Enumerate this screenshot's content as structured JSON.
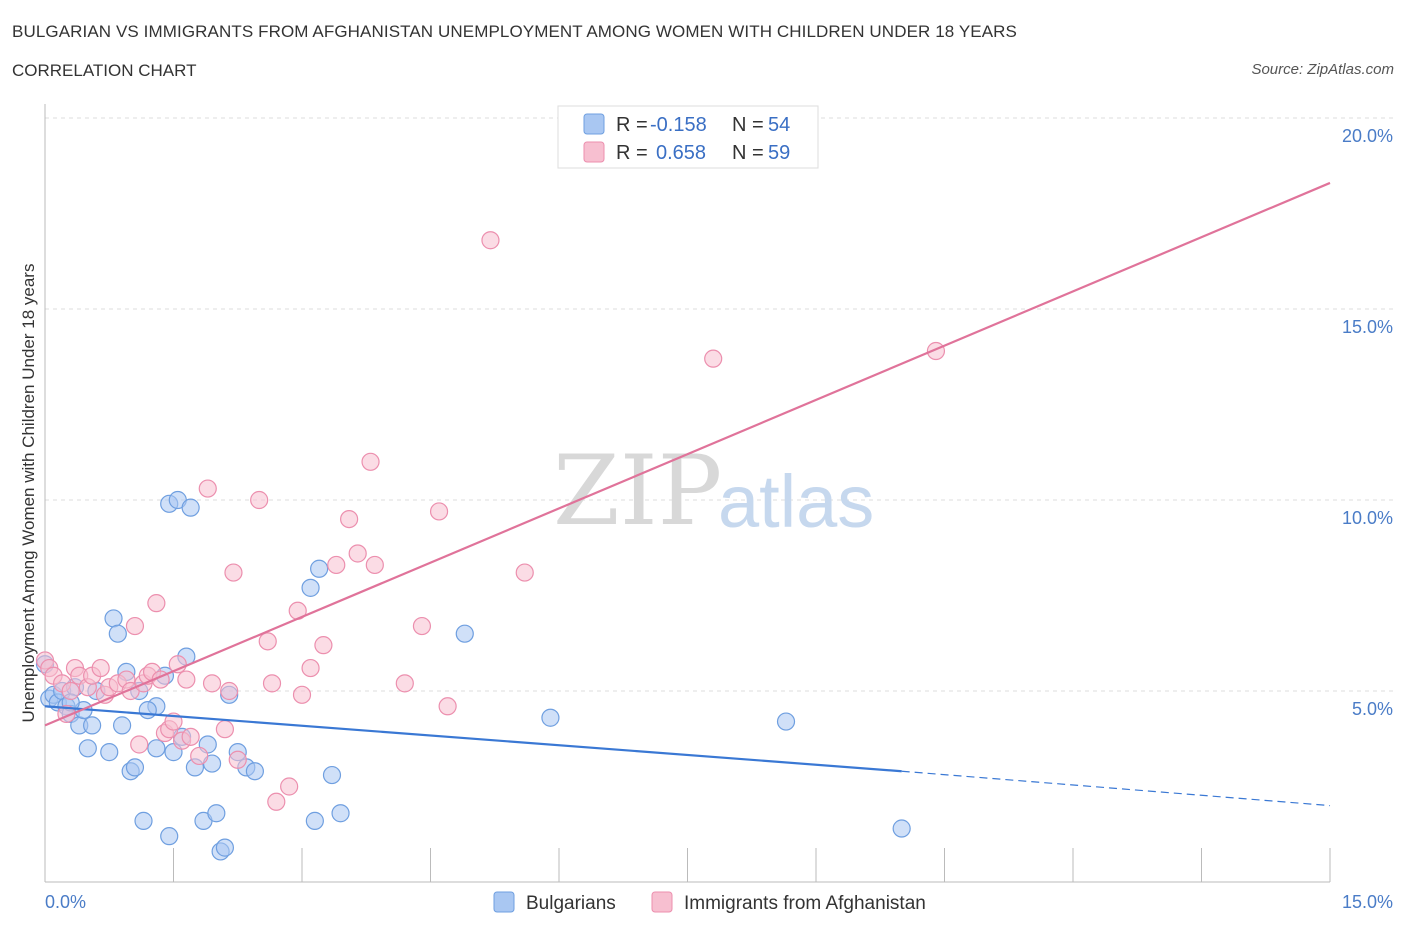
{
  "header": {
    "title": "BULGARIAN VS IMMIGRANTS FROM AFGHANISTAN UNEMPLOYMENT AMONG WOMEN WITH CHILDREN UNDER 18 YEARS",
    "subtitle": "CORRELATION CHART",
    "source": "Source: ZipAtlas.com"
  },
  "watermark": {
    "zip": "ZIP",
    "atlas": "atlas"
  },
  "legend": {
    "rows": [
      {
        "r_label": "R =",
        "r_value": "-0.158",
        "n_label": "N =",
        "n_value": "54",
        "color": "#a9c7f2"
      },
      {
        "r_label": "R =",
        "r_value": "0.658",
        "n_label": "N =",
        "n_value": "59",
        "color": "#f5b7c9"
      }
    ]
  },
  "bottom_legend": [
    "Bulgarians",
    "Immigrants from Afghanistan"
  ],
  "colors": {
    "blue_fill": "#a9c7f2",
    "blue_stroke": "#6f9fe0",
    "blue_line": "#3a78d4",
    "pink_fill": "#f7bfd0",
    "pink_stroke": "#ec8fae",
    "pink_line": "#e0739a",
    "grid": "#dddddd",
    "tick_text": "#4a7cc7"
  },
  "chart_data": {
    "type": "scatter",
    "title": "BULGARIAN VS IMMIGRANTS FROM AFGHANISTAN UNEMPLOYMENT AMONG WOMEN WITH CHILDREN UNDER 18 YEARS",
    "xlabel": "",
    "ylabel": "Unemployment Among Women with Children Under 18 years",
    "xlim": [
      0,
      15
    ],
    "ylim": [
      0,
      20
    ],
    "x_tick_labels": [
      "0.0%",
      "15.0%"
    ],
    "y_ticks": [
      5,
      10,
      15,
      20
    ],
    "y_tick_labels": [
      "5.0%",
      "10.0%",
      "15.0%",
      "20.0%"
    ],
    "grid": true,
    "legend_position": "top-center",
    "series": [
      {
        "name": "Bulgarians",
        "r": -0.158,
        "n": 54,
        "trend": {
          "x0": 0,
          "y0": 4.6,
          "x1": 10,
          "y1": 2.9,
          "dash_to_x": 15,
          "dash_to_y": 2.0
        },
        "points": [
          [
            0.0,
            5.7
          ],
          [
            0.05,
            4.8
          ],
          [
            0.1,
            4.9
          ],
          [
            0.15,
            4.7
          ],
          [
            0.2,
            5.0
          ],
          [
            0.25,
            4.6
          ],
          [
            0.3,
            4.4
          ],
          [
            0.35,
            5.1
          ],
          [
            0.4,
            4.1
          ],
          [
            0.45,
            4.5
          ],
          [
            0.5,
            3.5
          ],
          [
            0.55,
            4.1
          ],
          [
            0.6,
            5.0
          ],
          [
            0.75,
            3.4
          ],
          [
            0.8,
            6.9
          ],
          [
            0.85,
            6.5
          ],
          [
            0.9,
            4.1
          ],
          [
            0.95,
            5.5
          ],
          [
            1.0,
            2.9
          ],
          [
            1.05,
            3.0
          ],
          [
            1.1,
            5.0
          ],
          [
            1.15,
            1.6
          ],
          [
            1.3,
            4.6
          ],
          [
            1.3,
            3.5
          ],
          [
            1.4,
            5.4
          ],
          [
            1.45,
            1.2
          ],
          [
            1.45,
            9.9
          ],
          [
            1.5,
            3.4
          ],
          [
            1.55,
            10.0
          ],
          [
            1.6,
            3.8
          ],
          [
            1.65,
            5.9
          ],
          [
            1.7,
            9.8
          ],
          [
            1.75,
            3.0
          ],
          [
            1.85,
            1.6
          ],
          [
            1.9,
            3.6
          ],
          [
            1.95,
            3.1
          ],
          [
            2.0,
            1.8
          ],
          [
            2.05,
            0.8
          ],
          [
            2.1,
            0.9
          ],
          [
            2.15,
            4.9
          ],
          [
            2.25,
            3.4
          ],
          [
            2.35,
            3.0
          ],
          [
            2.45,
            2.9
          ],
          [
            3.1,
            7.7
          ],
          [
            3.15,
            1.6
          ],
          [
            3.2,
            8.2
          ],
          [
            3.35,
            2.8
          ],
          [
            3.45,
            1.8
          ],
          [
            4.9,
            6.5
          ],
          [
            5.9,
            4.3
          ],
          [
            8.65,
            4.2
          ],
          [
            10.0,
            1.4
          ],
          [
            0.3,
            4.7
          ],
          [
            1.2,
            4.5
          ]
        ]
      },
      {
        "name": "Immigrants from Afghanistan",
        "r": 0.658,
        "n": 59,
        "trend": {
          "x0": 0,
          "y0": 4.1,
          "x1": 15,
          "y1": 18.3
        },
        "points": [
          [
            0.0,
            5.8
          ],
          [
            0.05,
            5.6
          ],
          [
            0.1,
            5.4
          ],
          [
            0.2,
            5.2
          ],
          [
            0.25,
            4.4
          ],
          [
            0.3,
            5.0
          ],
          [
            0.35,
            5.6
          ],
          [
            0.4,
            5.4
          ],
          [
            0.5,
            5.1
          ],
          [
            0.55,
            5.4
          ],
          [
            0.65,
            5.6
          ],
          [
            0.7,
            4.9
          ],
          [
            0.75,
            5.1
          ],
          [
            0.85,
            5.2
          ],
          [
            0.95,
            5.3
          ],
          [
            1.0,
            5.0
          ],
          [
            1.05,
            6.7
          ],
          [
            1.1,
            3.6
          ],
          [
            1.15,
            5.2
          ],
          [
            1.2,
            5.4
          ],
          [
            1.25,
            5.5
          ],
          [
            1.3,
            7.3
          ],
          [
            1.35,
            5.3
          ],
          [
            1.4,
            3.9
          ],
          [
            1.45,
            4.0
          ],
          [
            1.5,
            4.2
          ],
          [
            1.55,
            5.7
          ],
          [
            1.6,
            3.7
          ],
          [
            1.65,
            5.3
          ],
          [
            1.7,
            3.8
          ],
          [
            1.8,
            3.3
          ],
          [
            1.9,
            10.3
          ],
          [
            1.95,
            5.2
          ],
          [
            2.1,
            4.0
          ],
          [
            2.15,
            5.0
          ],
          [
            2.2,
            8.1
          ],
          [
            2.25,
            3.2
          ],
          [
            2.5,
            10.0
          ],
          [
            2.6,
            6.3
          ],
          [
            2.65,
            5.2
          ],
          [
            2.7,
            2.1
          ],
          [
            2.85,
            2.5
          ],
          [
            2.95,
            7.1
          ],
          [
            3.0,
            4.9
          ],
          [
            3.1,
            5.6
          ],
          [
            3.25,
            6.2
          ],
          [
            3.4,
            8.3
          ],
          [
            3.55,
            9.5
          ],
          [
            3.65,
            8.6
          ],
          [
            3.8,
            11.0
          ],
          [
            3.85,
            8.3
          ],
          [
            4.2,
            5.2
          ],
          [
            4.4,
            6.7
          ],
          [
            4.6,
            9.7
          ],
          [
            4.7,
            4.6
          ],
          [
            5.2,
            16.8
          ],
          [
            5.6,
            8.1
          ],
          [
            7.8,
            13.7
          ],
          [
            10.4,
            13.9
          ]
        ]
      }
    ]
  }
}
